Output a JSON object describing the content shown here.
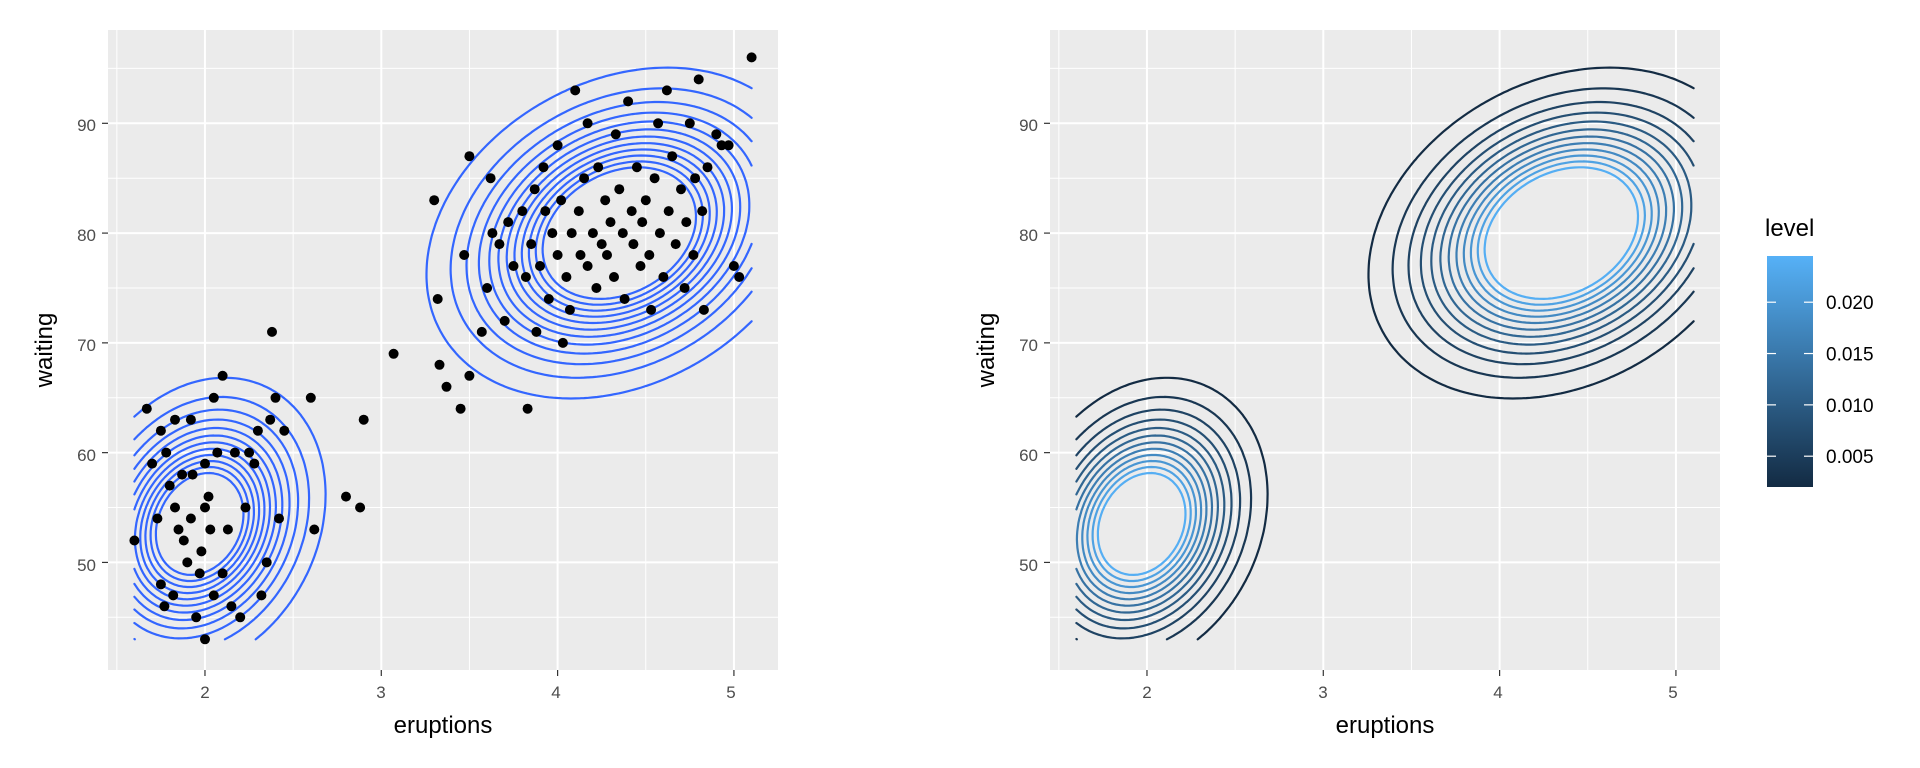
{
  "chart_data": [
    {
      "type": "scatter",
      "overlay": "density-contour",
      "xlabel": "eruptions",
      "ylabel": "waiting",
      "xlim": [
        1.45,
        5.25
      ],
      "ylim": [
        40.2,
        98.5
      ],
      "x_ticks": [
        "2",
        "3",
        "4",
        "5"
      ],
      "y_ticks": [
        "50",
        "60",
        "70",
        "80",
        "90"
      ],
      "grid": true,
      "contour_color": "#3366ff",
      "point_color": "#000000",
      "points": [
        [
          1.6,
          52
        ],
        [
          1.67,
          64
        ],
        [
          1.7,
          59
        ],
        [
          1.75,
          62
        ],
        [
          1.73,
          54
        ],
        [
          1.78,
          60
        ],
        [
          1.8,
          57
        ],
        [
          1.83,
          55
        ],
        [
          1.75,
          48
        ],
        [
          1.77,
          46
        ],
        [
          1.82,
          47
        ],
        [
          1.85,
          53
        ],
        [
          1.87,
          58
        ],
        [
          1.88,
          52
        ],
        [
          1.9,
          50
        ],
        [
          1.92,
          54
        ],
        [
          1.93,
          58
        ],
        [
          1.95,
          45
        ],
        [
          1.97,
          49
        ],
        [
          1.98,
          51
        ],
        [
          2.0,
          43
        ],
        [
          2.0,
          55
        ],
        [
          2.0,
          59
        ],
        [
          2.02,
          56
        ],
        [
          2.03,
          53
        ],
        [
          2.05,
          47
        ],
        [
          2.07,
          60
        ],
        [
          2.1,
          49
        ],
        [
          2.13,
          53
        ],
        [
          2.15,
          46
        ],
        [
          2.17,
          60
        ],
        [
          2.2,
          45
        ],
        [
          2.23,
          55
        ],
        [
          2.25,
          60
        ],
        [
          2.28,
          59
        ],
        [
          2.32,
          47
        ],
        [
          2.35,
          50
        ],
        [
          2.37,
          63
        ],
        [
          2.4,
          65
        ],
        [
          2.42,
          54
        ],
        [
          2.45,
          62
        ],
        [
          2.38,
          71
        ],
        [
          2.1,
          67
        ],
        [
          1.92,
          63
        ],
        [
          1.83,
          63
        ],
        [
          2.05,
          65
        ],
        [
          2.3,
          62
        ],
        [
          2.6,
          65
        ],
        [
          2.62,
          53
        ],
        [
          2.8,
          56
        ],
        [
          2.88,
          55
        ],
        [
          2.9,
          63
        ],
        [
          3.07,
          69
        ],
        [
          3.3,
          83
        ],
        [
          3.32,
          74
        ],
        [
          3.33,
          68
        ],
        [
          3.37,
          66
        ],
        [
          3.45,
          64
        ],
        [
          3.47,
          78
        ],
        [
          3.5,
          67
        ],
        [
          3.5,
          87
        ],
        [
          3.57,
          71
        ],
        [
          3.6,
          75
        ],
        [
          3.62,
          85
        ],
        [
          3.63,
          80
        ],
        [
          3.67,
          79
        ],
        [
          3.7,
          72
        ],
        [
          3.72,
          81
        ],
        [
          3.75,
          77
        ],
        [
          3.8,
          82
        ],
        [
          3.82,
          76
        ],
        [
          3.83,
          64
        ],
        [
          3.85,
          79
        ],
        [
          3.87,
          84
        ],
        [
          3.88,
          71
        ],
        [
          3.9,
          77
        ],
        [
          3.92,
          86
        ],
        [
          3.93,
          82
        ],
        [
          3.95,
          74
        ],
        [
          3.97,
          80
        ],
        [
          4.0,
          78
        ],
        [
          4.0,
          88
        ],
        [
          4.02,
          83
        ],
        [
          4.03,
          70
        ],
        [
          4.05,
          76
        ],
        [
          4.07,
          73
        ],
        [
          4.08,
          80
        ],
        [
          4.1,
          93
        ],
        [
          4.12,
          82
        ],
        [
          4.13,
          78
        ],
        [
          4.15,
          85
        ],
        [
          4.17,
          90
        ],
        [
          4.17,
          77
        ],
        [
          4.2,
          80
        ],
        [
          4.22,
          75
        ],
        [
          4.23,
          86
        ],
        [
          4.25,
          79
        ],
        [
          4.27,
          83
        ],
        [
          4.28,
          78
        ],
        [
          4.3,
          81
        ],
        [
          4.32,
          76
        ],
        [
          4.33,
          89
        ],
        [
          4.35,
          84
        ],
        [
          4.37,
          80
        ],
        [
          4.38,
          74
        ],
        [
          4.4,
          92
        ],
        [
          4.42,
          82
        ],
        [
          4.43,
          79
        ],
        [
          4.45,
          86
        ],
        [
          4.47,
          77
        ],
        [
          4.48,
          81
        ],
        [
          4.5,
          83
        ],
        [
          4.52,
          78
        ],
        [
          4.53,
          73
        ],
        [
          4.55,
          85
        ],
        [
          4.57,
          90
        ],
        [
          4.58,
          80
        ],
        [
          4.6,
          76
        ],
        [
          4.62,
          93
        ],
        [
          4.63,
          82
        ],
        [
          4.65,
          87
        ],
        [
          4.67,
          79
        ],
        [
          4.7,
          84
        ],
        [
          4.72,
          75
        ],
        [
          4.73,
          81
        ],
        [
          4.75,
          90
        ],
        [
          4.77,
          78
        ],
        [
          4.78,
          85
        ],
        [
          4.8,
          94
        ],
        [
          4.82,
          82
        ],
        [
          4.83,
          73
        ],
        [
          4.85,
          86
        ],
        [
          4.9,
          89
        ],
        [
          4.93,
          88
        ],
        [
          4.97,
          88
        ],
        [
          5.0,
          77
        ],
        [
          5.03,
          76
        ],
        [
          5.1,
          96
        ]
      ]
    },
    {
      "type": "contour",
      "xlabel": "eruptions",
      "ylabel": "waiting",
      "xlim": [
        1.45,
        5.25
      ],
      "ylim": [
        40.2,
        98.5
      ],
      "x_ticks": [
        "2",
        "3",
        "4",
        "5"
      ],
      "y_ticks": [
        "50",
        "60",
        "70",
        "80",
        "90"
      ],
      "grid": true,
      "legend": {
        "title": "level",
        "position": "right",
        "labels": [
          "0.020",
          "0.015",
          "0.010",
          "0.005"
        ],
        "values": [
          0.02,
          0.015,
          0.01,
          0.005
        ],
        "range": [
          0.002,
          0.0245
        ],
        "color_low": "#132b43",
        "color_high": "#56b1f7"
      }
    }
  ]
}
